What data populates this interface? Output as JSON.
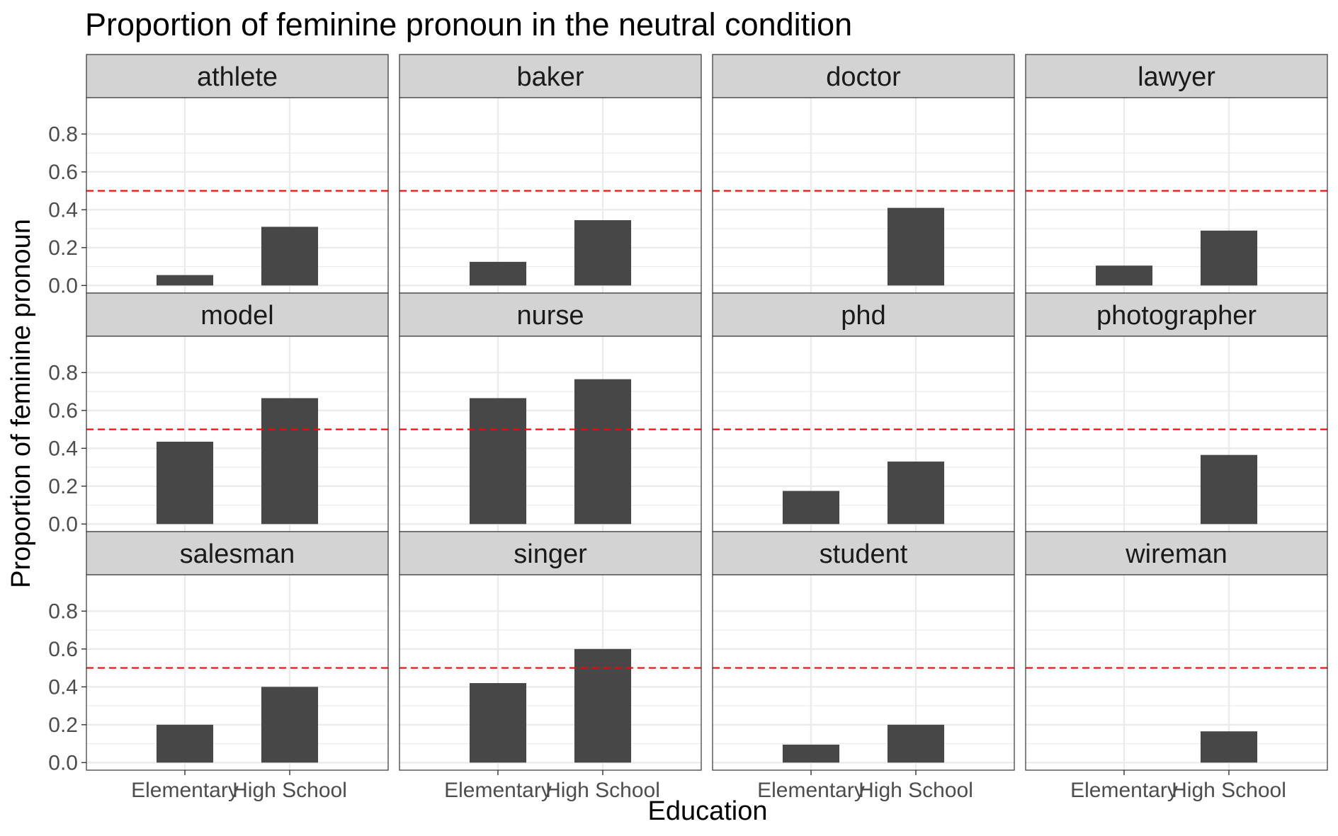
{
  "chart_data": {
    "type": "bar",
    "title": "Proportion of feminine pronoun in the neutral condition",
    "xlabel": "Education",
    "ylabel": "Proportion of feminine pronoun",
    "categories": [
      "Elementary",
      "High School"
    ],
    "ylim": [
      0,
      0.8
    ],
    "yticks": [
      "0.0",
      "0.2",
      "0.4",
      "0.6",
      "0.8"
    ],
    "reference_line": {
      "y": 0.5,
      "style": "dashed",
      "color": "#ff0000"
    },
    "facets": [
      {
        "name": "athlete",
        "values": [
          0.055,
          0.31
        ]
      },
      {
        "name": "baker",
        "values": [
          0.125,
          0.345
        ]
      },
      {
        "name": "doctor",
        "values": [
          0,
          0.41
        ]
      },
      {
        "name": "lawyer",
        "values": [
          0.105,
          0.29
        ]
      },
      {
        "name": "model",
        "values": [
          0.435,
          0.665
        ]
      },
      {
        "name": "nurse",
        "values": [
          0.665,
          0.765
        ]
      },
      {
        "name": "phd",
        "values": [
          0.175,
          0.33
        ]
      },
      {
        "name": "photographer",
        "values": [
          0,
          0.365
        ]
      },
      {
        "name": "salesman",
        "values": [
          0.2,
          0.4
        ]
      },
      {
        "name": "singer",
        "values": [
          0.42,
          0.6
        ]
      },
      {
        "name": "student",
        "values": [
          0.095,
          0.2
        ]
      },
      {
        "name": "wireman",
        "values": [
          0,
          0.165
        ]
      }
    ],
    "grid": true,
    "bar_color": "#474747",
    "strip_color": "#d3d3d3"
  }
}
